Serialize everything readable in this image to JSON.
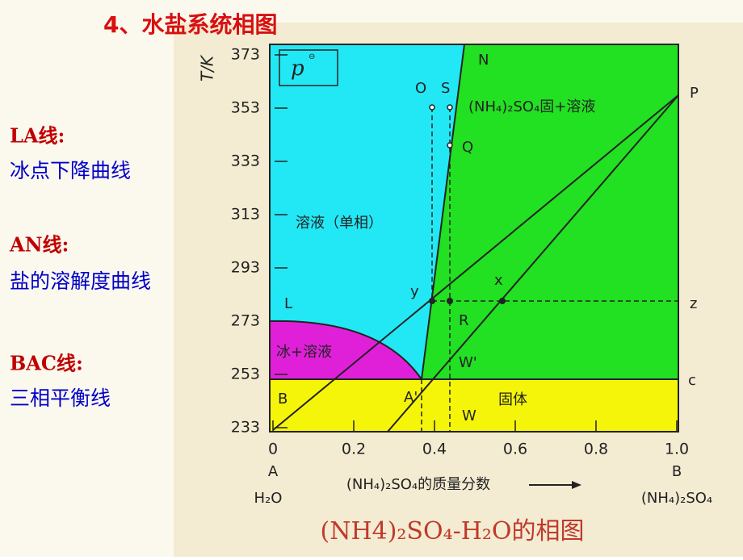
{
  "title": "4、水盐系统相图",
  "notes": [
    {
      "label": "LA线:",
      "text": "冰点下降曲线"
    },
    {
      "label": "AN线:",
      "text": "盐的溶解度曲线"
    },
    {
      "label": "BAC线:",
      "text": "三相平衡线"
    }
  ],
  "diagram": {
    "y_label": "T/K",
    "symbol": "p",
    "yticks": [
      373,
      353,
      333,
      313,
      293,
      273,
      253,
      233
    ],
    "xticks": [
      0,
      0.2,
      0.4,
      0.6,
      0.8,
      {
        "value": 1,
        "label": "1.0"
      }
    ],
    "points": {
      "L": "L",
      "O": "O",
      "S": "S",
      "N": "N",
      "P": "P",
      "Q": "Q",
      "y": "y",
      "x": "x",
      "z": "z",
      "R": "R",
      "W1": "W'",
      "W": "W",
      "A1": "A'",
      "B": "B",
      "c": "c"
    },
    "regions": {
      "salt_solution": "(NH₄)₂SO₄固+溶液",
      "solution": "溶液（单相）",
      "ice_solution": "冰+溶液",
      "solid": "固体"
    },
    "x_left": {
      "letter": "A",
      "formula": "H₂O"
    },
    "x_right": {
      "letter": "B",
      "formula": "(NH₄)₂SO₄"
    },
    "x_label": "(NH₄)₂SO₄的质量分数",
    "caption": "(NH4)₂SO₄-H₂O的相图"
  }
}
